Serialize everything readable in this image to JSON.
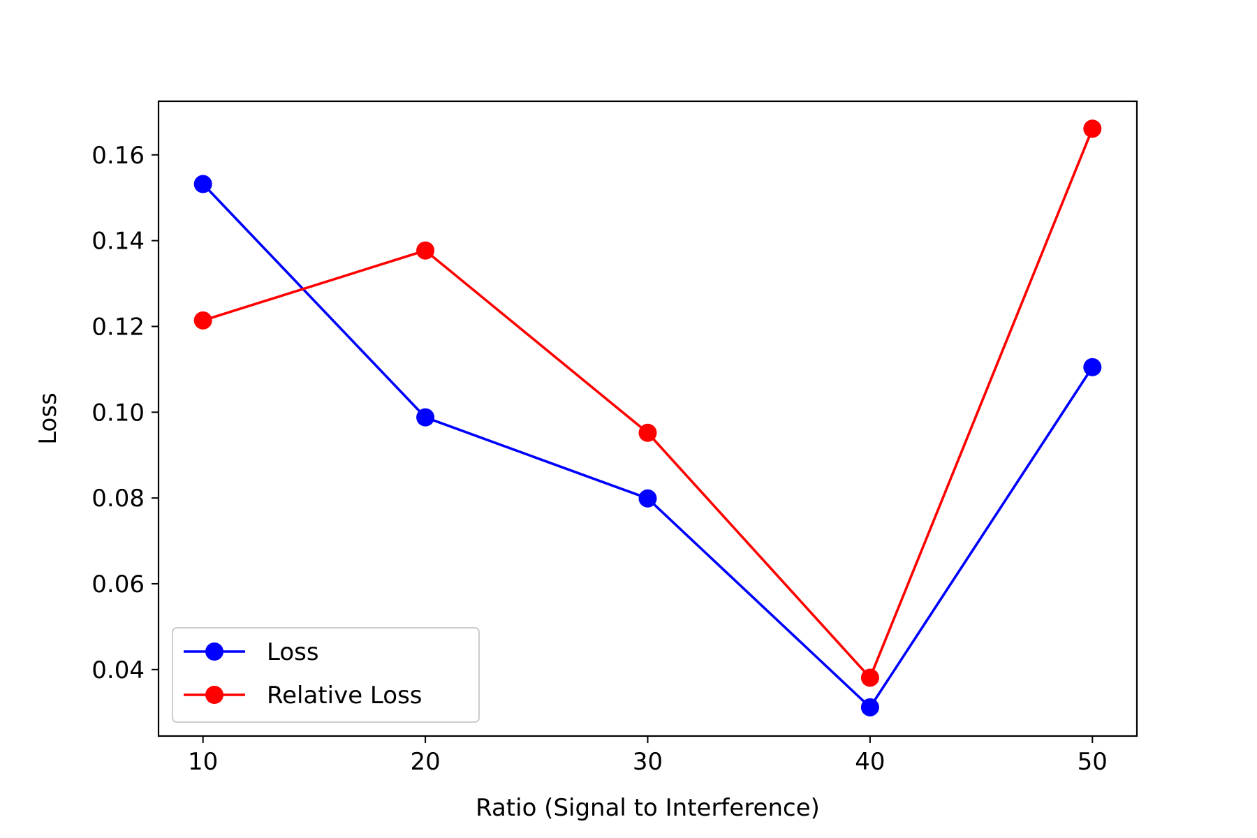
{
  "chart_data": {
    "type": "line",
    "title": "",
    "xlabel": "Ratio (Signal to Interference)",
    "ylabel": "Loss",
    "x": [
      10,
      20,
      30,
      40,
      50
    ],
    "xlim": [
      8,
      52
    ],
    "ylim": [
      0.0245,
      0.1725
    ],
    "xticks": [
      10,
      20,
      30,
      40,
      50
    ],
    "yticks": [
      0.04,
      0.06,
      0.08,
      0.1,
      0.12,
      0.14,
      0.16
    ],
    "ytick_labels": [
      "0.04",
      "0.06",
      "0.08",
      "0.10",
      "0.12",
      "0.14",
      "0.16"
    ],
    "grid": false,
    "legend_position": "lower-left",
    "series": [
      {
        "name": "Loss",
        "color": "#0000ff",
        "marker": "circle",
        "values": [
          0.1532,
          0.0988,
          0.0799,
          0.0312,
          0.1105
        ]
      },
      {
        "name": "Relative Loss",
        "color": "#ff0000",
        "marker": "circle",
        "values": [
          0.1214,
          0.1377,
          0.0952,
          0.0381,
          0.1661
        ]
      }
    ]
  }
}
